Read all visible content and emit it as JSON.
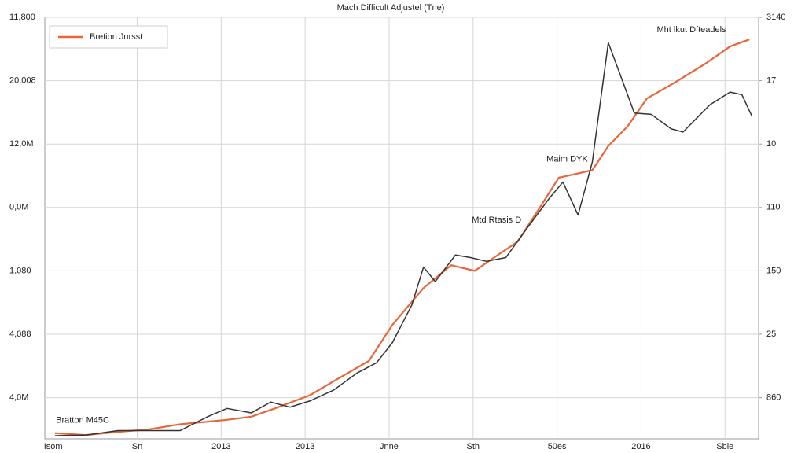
{
  "chart_data": {
    "type": "line",
    "title": "Mach Difficult Adjustel (Tne)",
    "annotations": [
      {
        "text": "Mht lkut Dfteadels",
        "x": 7.6,
        "y": 6.8
      },
      {
        "text": "Maim DYK",
        "x": 6.12,
        "y": 4.76
      },
      {
        "text": "Mtd Rtasis D",
        "x": 5.28,
        "y": 3.8
      },
      {
        "text": "Bratton M45C",
        "x": 0.35,
        "y": 0.64
      }
    ],
    "xlim": [
      -0.1,
      8.4
    ],
    "xticks": [
      {
        "value": 0,
        "label": "Isom"
      },
      {
        "value": 1,
        "label": "Sn"
      },
      {
        "value": 2,
        "label": "2013"
      },
      {
        "value": 3,
        "label": "2013"
      },
      {
        "value": 4,
        "label": "Jnne"
      },
      {
        "value": 5,
        "label": "Sth"
      },
      {
        "value": 6,
        "label": "50es"
      },
      {
        "value": 7,
        "label": "2016"
      },
      {
        "value": 8,
        "label": "Sbie"
      }
    ],
    "ylim": [
      0.35,
      7
    ],
    "yticks": [
      {
        "value": 1,
        "label": "4,0M"
      },
      {
        "value": 2,
        "label": "4,088"
      },
      {
        "value": 3,
        "label": "1,080"
      },
      {
        "value": 4,
        "label": "0,0M"
      },
      {
        "value": 5,
        "label": "12,0M"
      },
      {
        "value": 6,
        "label": "20,008"
      },
      {
        "value": 7,
        "label": "11,800"
      }
    ],
    "y2lim": [
      0.35,
      7
    ],
    "y2ticks": [
      {
        "value": 1,
        "label": "860"
      },
      {
        "value": 2,
        "label": "25"
      },
      {
        "value": 3,
        "label": "150"
      },
      {
        "value": 4,
        "label": "110"
      },
      {
        "value": 5,
        "label": "10"
      },
      {
        "value": 6,
        "label": "17"
      },
      {
        "value": 7,
        "label": "3140"
      }
    ],
    "grid": true,
    "legend": "upper left",
    "series": [
      {
        "name": "Bretion Jursst",
        "color": "#e8663a",
        "x": [
          0.02,
          0.39,
          0.77,
          1.14,
          1.51,
          2.07,
          2.36,
          2.64,
          3.06,
          3.38,
          3.76,
          4.04,
          4.41,
          4.74,
          5.02,
          5.25,
          5.53,
          5.81,
          6.02,
          6.23,
          6.42,
          6.61,
          6.84,
          7.07,
          7.4,
          7.78,
          8.06,
          8.29
        ],
        "values": [
          0.44,
          0.41,
          0.46,
          0.5,
          0.58,
          0.65,
          0.7,
          0.83,
          1.04,
          1.29,
          1.58,
          2.15,
          2.73,
          3.09,
          3.0,
          3.21,
          3.46,
          4.03,
          4.47,
          4.53,
          4.59,
          4.97,
          5.28,
          5.72,
          5.97,
          6.28,
          6.54,
          6.65
        ]
      },
      {
        "color": "#333333",
        "x": [
          0.02,
          0.39,
          0.77,
          1.14,
          1.51,
          1.84,
          2.07,
          2.36,
          2.59,
          2.82,
          3.06,
          3.34,
          3.62,
          3.85,
          4.04,
          4.27,
          4.41,
          4.55,
          4.79,
          4.97,
          5.16,
          5.39,
          5.63,
          5.91,
          6.07,
          6.25,
          6.42,
          6.61,
          6.75,
          6.92,
          7.12,
          7.36,
          7.5,
          7.82,
          8.06,
          8.2,
          8.32
        ],
        "values": [
          0.4,
          0.41,
          0.48,
          0.48,
          0.48,
          0.7,
          0.83,
          0.76,
          0.93,
          0.85,
          0.95,
          1.12,
          1.39,
          1.55,
          1.87,
          2.46,
          3.06,
          2.83,
          3.25,
          3.21,
          3.15,
          3.21,
          3.65,
          4.15,
          4.4,
          3.88,
          4.72,
          6.6,
          6.1,
          5.49,
          5.47,
          5.24,
          5.19,
          5.62,
          5.82,
          5.78,
          5.44
        ]
      }
    ]
  }
}
